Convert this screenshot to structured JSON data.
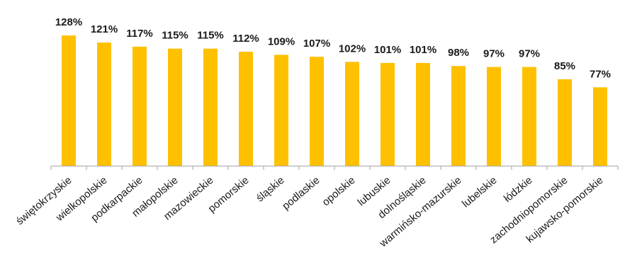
{
  "chart_data": {
    "type": "bar",
    "categories": [
      "świętokrzyskie",
      "wielkopolskie",
      "podkarpackie",
      "małopolskie",
      "mazowieckie",
      "pomorskie",
      "śląskie",
      "podlaskie",
      "opolskie",
      "lubuskie",
      "dolnośląskie",
      "warmińsko-mazurskie",
      "lubelskie",
      "łódzkie",
      "zachodniopomorskie",
      "kujawsko-pomorskie"
    ],
    "values": [
      128,
      121,
      117,
      115,
      115,
      112,
      109,
      107,
      102,
      101,
      101,
      98,
      97,
      97,
      85,
      77
    ],
    "value_labels": [
      "128%",
      "121%",
      "117%",
      "115%",
      "115%",
      "112%",
      "109%",
      "107%",
      "102%",
      "101%",
      "101%",
      "98%",
      "97%",
      "97%",
      "85%",
      "77%"
    ],
    "unit": "%",
    "bar_color": "#FFC000",
    "axis_color": "#A6A6A6",
    "title": "",
    "xlabel": "",
    "ylabel": "",
    "ylim": [
      0,
      135
    ],
    "grid": false,
    "legend": "none"
  }
}
